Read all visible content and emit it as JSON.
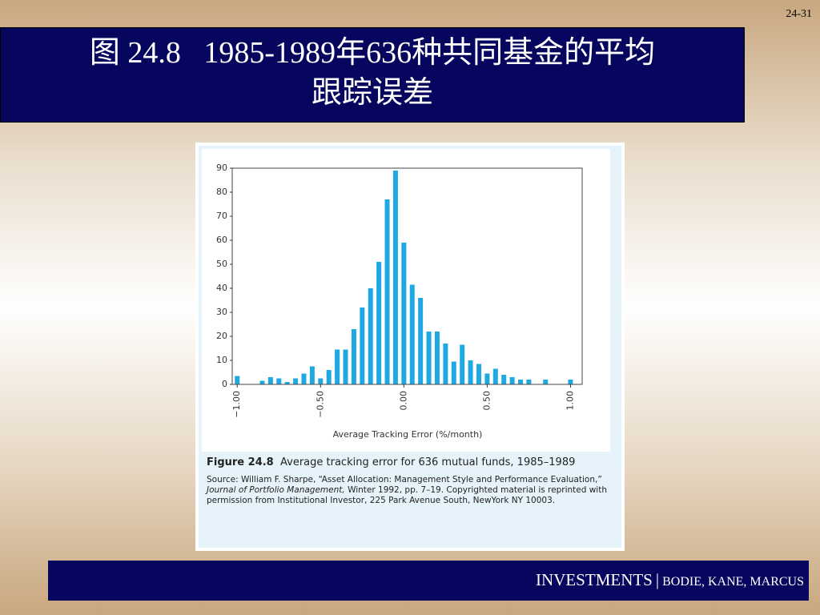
{
  "slide": {
    "page_number": "24-31",
    "title_line1": "图 24.8   1985-1989年636种共同基金的平均",
    "title_line2": "跟踪误差",
    "footer": {
      "brand": "INVESTMENTS",
      "separator": "|",
      "authors": "BODIE, KANE, MARCUS"
    }
  },
  "caption": {
    "figure_label": "Figure 24.8",
    "figure_text": "Average tracking error for 636 mutual funds, 1985–1989",
    "source_prefix": "Source: William F. Sharpe, “Asset Allocation: Management Style and Performance Evaluation,”",
    "journal": "Journal of Portfolio Management,",
    "source_suffix": "Winter 1992, pp. 7–19. Copyrighted material is reprinted with permission from Institutional Investor, 225 Park Avenue South, NewYork NY 10003."
  },
  "chart_data": {
    "type": "bar",
    "x_label": "Average Tracking Error (%/month)",
    "color": "#1fa9e3",
    "x": [
      -1.0,
      -0.85,
      -0.8,
      -0.75,
      -0.7,
      -0.65,
      -0.6,
      -0.55,
      -0.5,
      -0.45,
      -0.4,
      -0.35,
      -0.3,
      -0.25,
      -0.2,
      -0.15,
      -0.1,
      -0.05,
      0.0,
      0.05,
      0.1,
      0.15,
      0.2,
      0.25,
      0.3,
      0.35,
      0.4,
      0.45,
      0.5,
      0.55,
      0.6,
      0.65,
      0.7,
      0.75,
      0.85,
      1.0
    ],
    "values": [
      3.5,
      1.5,
      3,
      2.5,
      1,
      2.5,
      4.5,
      7.5,
      2.5,
      6,
      14.5,
      14.5,
      23,
      32,
      40,
      51,
      77,
      89,
      59,
      41.5,
      36,
      22,
      22,
      17,
      9.5,
      16.5,
      10,
      8.5,
      4.5,
      6.5,
      4,
      3,
      2,
      2,
      2,
      2
    ],
    "xlim": [
      -1.03,
      1.07
    ],
    "xticks": [
      {
        "value": -1,
        "label": "−1.00"
      },
      {
        "value": -0.5,
        "label": "−0.50"
      },
      {
        "value": 0,
        "label": "0.00"
      },
      {
        "value": 0.5,
        "label": "0.50"
      },
      {
        "value": 1,
        "label": "1.00"
      }
    ],
    "ylim": [
      0,
      90
    ],
    "yticks": [
      0,
      10,
      20,
      30,
      40,
      50,
      60,
      70,
      80,
      90
    ]
  }
}
